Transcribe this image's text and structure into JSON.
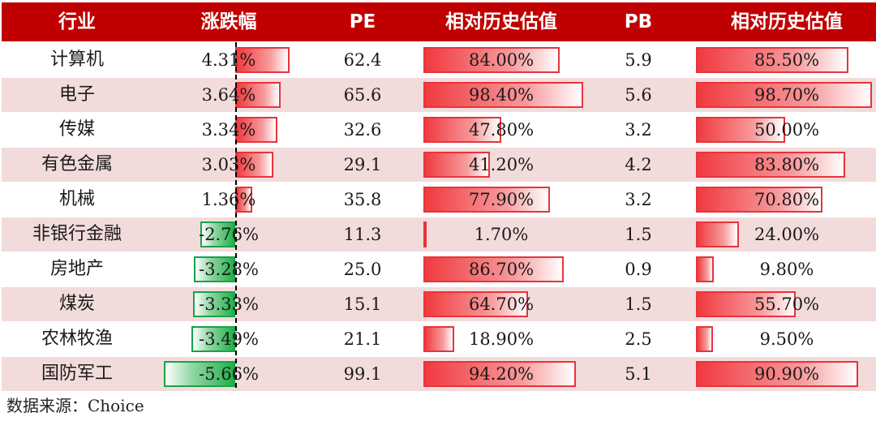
{
  "header": {
    "industry": "行业",
    "change": "涨跌幅",
    "pe": "PE",
    "pe_rel": "相对历史估值",
    "pb": "PB",
    "pb_rel": "相对历史估值"
  },
  "rows": [
    {
      "industry": "计算机",
      "change": "4.31%",
      "pe": "62.4",
      "pe_rel": "84.00%",
      "pb": "5.9",
      "pb_rel": "85.50%"
    },
    {
      "industry": "电子",
      "change": "3.64%",
      "pe": "65.6",
      "pe_rel": "98.40%",
      "pb": "5.6",
      "pb_rel": "98.70%"
    },
    {
      "industry": "传媒",
      "change": "3.34%",
      "pe": "32.6",
      "pe_rel": "47.80%",
      "pb": "3.2",
      "pb_rel": "50.00%"
    },
    {
      "industry": "有色金属",
      "change": "3.03%",
      "pe": "29.1",
      "pe_rel": "41.20%",
      "pb": "4.2",
      "pb_rel": "83.80%"
    },
    {
      "industry": "机械",
      "change": "1.36%",
      "pe": "35.8",
      "pe_rel": "77.90%",
      "pb": "3.2",
      "pb_rel": "70.80%"
    },
    {
      "industry": "非银行金融",
      "change": "-2.76%",
      "pe": "11.3",
      "pe_rel": "1.70%",
      "pb": "1.5",
      "pb_rel": "24.00%"
    },
    {
      "industry": "房地产",
      "change": "-3.28%",
      "pe": "25.0",
      "pe_rel": "86.70%",
      "pb": "0.9",
      "pb_rel": "9.80%"
    },
    {
      "industry": "煤炭",
      "change": "-3.33%",
      "pe": "15.1",
      "pe_rel": "64.70%",
      "pb": "1.5",
      "pb_rel": "55.70%"
    },
    {
      "industry": "农林牧渔",
      "change": "-3.49%",
      "pe": "21.1",
      "pe_rel": "18.90%",
      "pb": "2.5",
      "pb_rel": "9.50%"
    },
    {
      "industry": "国防军工",
      "change": "-5.66%",
      "pe": "99.1",
      "pe_rel": "94.20%",
      "pb": "5.1",
      "pb_rel": "90.90%"
    }
  ],
  "source": "数据来源：Choice",
  "colors": {
    "header_bg": "#c00000",
    "row_alt_bg": "#f2dcdb",
    "positive_bar": "#f03a3f",
    "negative_bar": "#22b14c"
  }
}
